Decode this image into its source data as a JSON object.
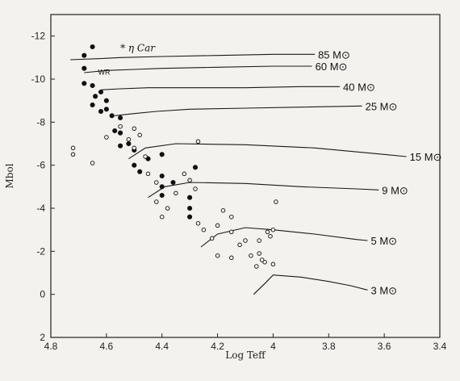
{
  "chart_data": {
    "type": "scatter",
    "xlabel": "Log Teff",
    "ylabel": "Mbol",
    "xlim": [
      4.8,
      3.4
    ],
    "ylim": [
      2,
      -13
    ],
    "xticks": [
      "4.8",
      "4.6",
      "4.4",
      "4.2",
      "4",
      "3.8",
      "3.6",
      "3.4"
    ],
    "xtick_values": [
      4.8,
      4.6,
      4.4,
      4.2,
      4.0,
      3.8,
      3.6,
      3.4
    ],
    "yticks": [
      "-12",
      "-10",
      "-8",
      "-6",
      "-4",
      "-2",
      "0",
      "2"
    ],
    "ytick_values": [
      -12,
      -10,
      -8,
      -6,
      -4,
      -2,
      0,
      2
    ],
    "annotations": [
      {
        "text": "* η Car",
        "x": 4.55,
        "y": -11.3
      },
      {
        "text": "WR",
        "x": 4.63,
        "y": -10.2
      }
    ],
    "tracks": [
      {
        "label": "85 M⊙",
        "x": [
          4.73,
          4.63,
          4.55,
          4.4,
          4.2,
          4.0,
          3.85
        ],
        "y": [
          -10.9,
          -10.95,
          -11.0,
          -11.05,
          -11.1,
          -11.15,
          -11.15
        ]
      },
      {
        "label": "60 M⊙",
        "x": [
          4.68,
          4.6,
          4.5,
          4.4,
          4.2,
          4.0,
          3.86
        ],
        "y": [
          -10.3,
          -10.4,
          -10.45,
          -10.5,
          -10.55,
          -10.6,
          -10.6
        ]
      },
      {
        "label": "40 M⊙",
        "x": [
          4.62,
          4.55,
          4.45,
          4.3,
          4.1,
          3.9,
          3.76
        ],
        "y": [
          -9.5,
          -9.55,
          -9.6,
          -9.6,
          -9.6,
          -9.65,
          -9.65
        ]
      },
      {
        "label": "25 M⊙",
        "x": [
          4.57,
          4.5,
          4.42,
          4.3,
          4.1,
          3.9,
          3.68
        ],
        "y": [
          -8.3,
          -8.4,
          -8.5,
          -8.6,
          -8.65,
          -8.7,
          -8.75
        ]
      },
      {
        "label": "15 M⊙",
        "x": [
          4.52,
          4.46,
          4.35,
          4.1,
          3.85,
          3.6,
          3.52
        ],
        "y": [
          -6.3,
          -6.8,
          -7.0,
          -6.95,
          -6.8,
          -6.5,
          -6.4
        ]
      },
      {
        "label": "9 M⊙",
        "x": [
          4.45,
          4.39,
          4.3,
          4.1,
          3.9,
          3.7,
          3.62
        ],
        "y": [
          -4.5,
          -5.0,
          -5.2,
          -5.15,
          -5.0,
          -4.9,
          -4.85
        ]
      },
      {
        "label": "5 M⊙",
        "x": [
          4.26,
          4.2,
          4.1,
          4.0,
          3.85,
          3.7,
          3.66
        ],
        "y": [
          -2.2,
          -2.8,
          -3.1,
          -3.0,
          -2.8,
          -2.55,
          -2.5
        ]
      },
      {
        "label": "3 M⊙",
        "x": [
          4.07,
          4.03,
          4.0,
          3.9,
          3.8,
          3.72,
          3.66
        ],
        "y": [
          0.0,
          -0.5,
          -0.9,
          -0.8,
          -0.6,
          -0.4,
          -0.2
        ]
      }
    ],
    "series": [
      {
        "name": "filled",
        "points": [
          [
            4.68,
            -11.1
          ],
          [
            4.65,
            -11.5
          ],
          [
            4.68,
            -10.5
          ],
          [
            4.68,
            -9.8
          ],
          [
            4.65,
            -9.7
          ],
          [
            4.64,
            -9.2
          ],
          [
            4.62,
            -9.4
          ],
          [
            4.6,
            -9.0
          ],
          [
            4.65,
            -8.8
          ],
          [
            4.62,
            -8.5
          ],
          [
            4.58,
            -8.3
          ],
          [
            4.55,
            -8.2
          ],
          [
            4.57,
            -7.6
          ],
          [
            4.55,
            -7.5
          ],
          [
            4.52,
            -7.0
          ],
          [
            4.5,
            -6.7
          ],
          [
            4.5,
            -6.0
          ],
          [
            4.45,
            -6.3
          ],
          [
            4.4,
            -6.5
          ],
          [
            4.4,
            -5.5
          ],
          [
            4.4,
            -5.0
          ],
          [
            4.4,
            -4.6
          ],
          [
            4.36,
            -5.2
          ],
          [
            4.3,
            -4.5
          ],
          [
            4.3,
            -4.0
          ],
          [
            4.3,
            -3.6
          ],
          [
            4.28,
            -5.9
          ],
          [
            4.55,
            -6.9
          ],
          [
            4.48,
            -5.7
          ],
          [
            4.6,
            -8.6
          ]
        ]
      },
      {
        "name": "open",
        "points": [
          [
            4.72,
            -6.8
          ],
          [
            4.72,
            -6.5
          ],
          [
            4.65,
            -6.1
          ],
          [
            4.6,
            -7.3
          ],
          [
            4.55,
            -7.8
          ],
          [
            4.52,
            -7.2
          ],
          [
            4.5,
            -6.8
          ],
          [
            4.5,
            -7.7
          ],
          [
            4.48,
            -7.4
          ],
          [
            4.46,
            -6.4
          ],
          [
            4.45,
            -5.6
          ],
          [
            4.42,
            -5.2
          ],
          [
            4.42,
            -4.3
          ],
          [
            4.4,
            -3.6
          ],
          [
            4.38,
            -4.0
          ],
          [
            4.35,
            -4.7
          ],
          [
            4.32,
            -5.6
          ],
          [
            4.3,
            -5.3
          ],
          [
            4.28,
            -4.9
          ],
          [
            4.27,
            -7.1
          ],
          [
            4.27,
            -3.3
          ],
          [
            4.25,
            -3.0
          ],
          [
            4.22,
            -2.6
          ],
          [
            4.2,
            -3.2
          ],
          [
            4.18,
            -3.9
          ],
          [
            4.15,
            -3.6
          ],
          [
            4.15,
            -2.9
          ],
          [
            4.12,
            -2.3
          ],
          [
            4.1,
            -2.5
          ],
          [
            4.08,
            -1.8
          ],
          [
            4.05,
            -1.9
          ],
          [
            4.03,
            -1.5
          ],
          [
            4.0,
            -1.4
          ],
          [
            4.02,
            -2.9
          ],
          [
            4.0,
            -3.0
          ],
          [
            3.99,
            -4.3
          ],
          [
            4.05,
            -2.5
          ],
          [
            4.01,
            -2.7
          ],
          [
            4.15,
            -1.7
          ],
          [
            4.2,
            -1.8
          ],
          [
            4.06,
            -1.3
          ],
          [
            4.04,
            -1.6
          ]
        ]
      }
    ]
  }
}
